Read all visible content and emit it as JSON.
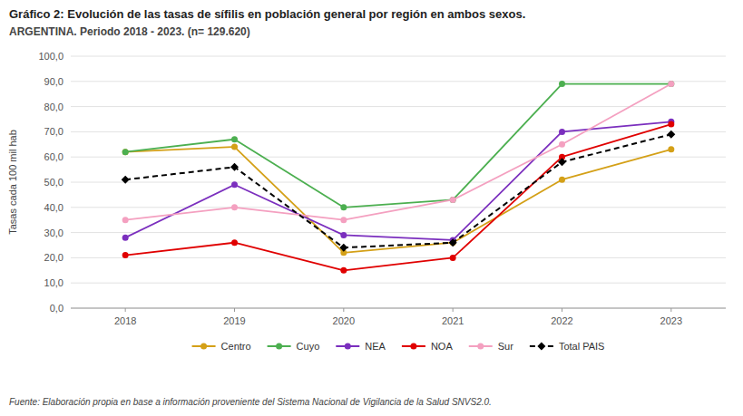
{
  "chart_data": {
    "type": "line",
    "title": "Gráfico 2: Evolución de las tasas de sífilis en población general por región en ambos sexos.",
    "subtitle": "ARGENTINA. Periodo 2018 - 2023. (n= 129.620)",
    "y_label": "Tasas cada 100 mil hab",
    "annotations": [
      "Fuente: Elaboración propia en base a información proveniente del Sistema Nacional de Vigilancia de la Salud SNVS2.0."
    ],
    "x": [
      2018,
      2019,
      2020,
      2021,
      2022,
      2023
    ],
    "xlim": [
      2017.5,
      2023.5
    ],
    "xticks": [
      2018,
      2019,
      2020,
      2021,
      2022,
      2023
    ],
    "ylim": [
      0,
      100
    ],
    "yticks": [
      {
        "value": 0,
        "label": "0,0"
      },
      {
        "value": 10,
        "label": "10,0"
      },
      {
        "value": 20,
        "label": "20,0"
      },
      {
        "value": 30,
        "label": "30,0"
      },
      {
        "value": 40,
        "label": "40,0"
      },
      {
        "value": 50,
        "label": "50,0"
      },
      {
        "value": 60,
        "label": "60,0"
      },
      {
        "value": 70,
        "label": "70,0"
      },
      {
        "value": 80,
        "label": "80,0"
      },
      {
        "value": 90,
        "label": "90,0"
      },
      {
        "value": 100,
        "label": "100,0"
      }
    ],
    "grid": true,
    "legend": "bottom",
    "series": [
      {
        "name": "Centro",
        "color": "#d4a017",
        "marker": "circle",
        "line_style": "solid",
        "values": [
          62.0,
          64.0,
          22.0,
          26.0,
          51.0,
          63.0
        ]
      },
      {
        "name": "Cuyo",
        "color": "#4caf50",
        "marker": "circle",
        "line_style": "solid",
        "values": [
          62.0,
          67.0,
          40.0,
          43.0,
          89.0,
          89.0
        ]
      },
      {
        "name": "NEA",
        "color": "#7b2fbe",
        "marker": "circle",
        "line_style": "solid",
        "values": [
          28.0,
          49.0,
          29.0,
          27.0,
          70.0,
          74.0
        ]
      },
      {
        "name": "NOA",
        "color": "#e00000",
        "marker": "circle",
        "line_style": "solid",
        "values": [
          21.0,
          26.0,
          15.0,
          20.0,
          60.0,
          73.0
        ]
      },
      {
        "name": "Sur",
        "color": "#f4a0c0",
        "marker": "circle",
        "line_style": "solid",
        "values": [
          35.0,
          40.0,
          35.0,
          43.0,
          65.0,
          89.0
        ]
      },
      {
        "name": "Total PAIS",
        "color": "#000000",
        "marker": "diamond",
        "line_style": "dashed",
        "values": [
          51.0,
          56.0,
          24.0,
          26.0,
          58.0,
          69.0
        ]
      }
    ]
  }
}
